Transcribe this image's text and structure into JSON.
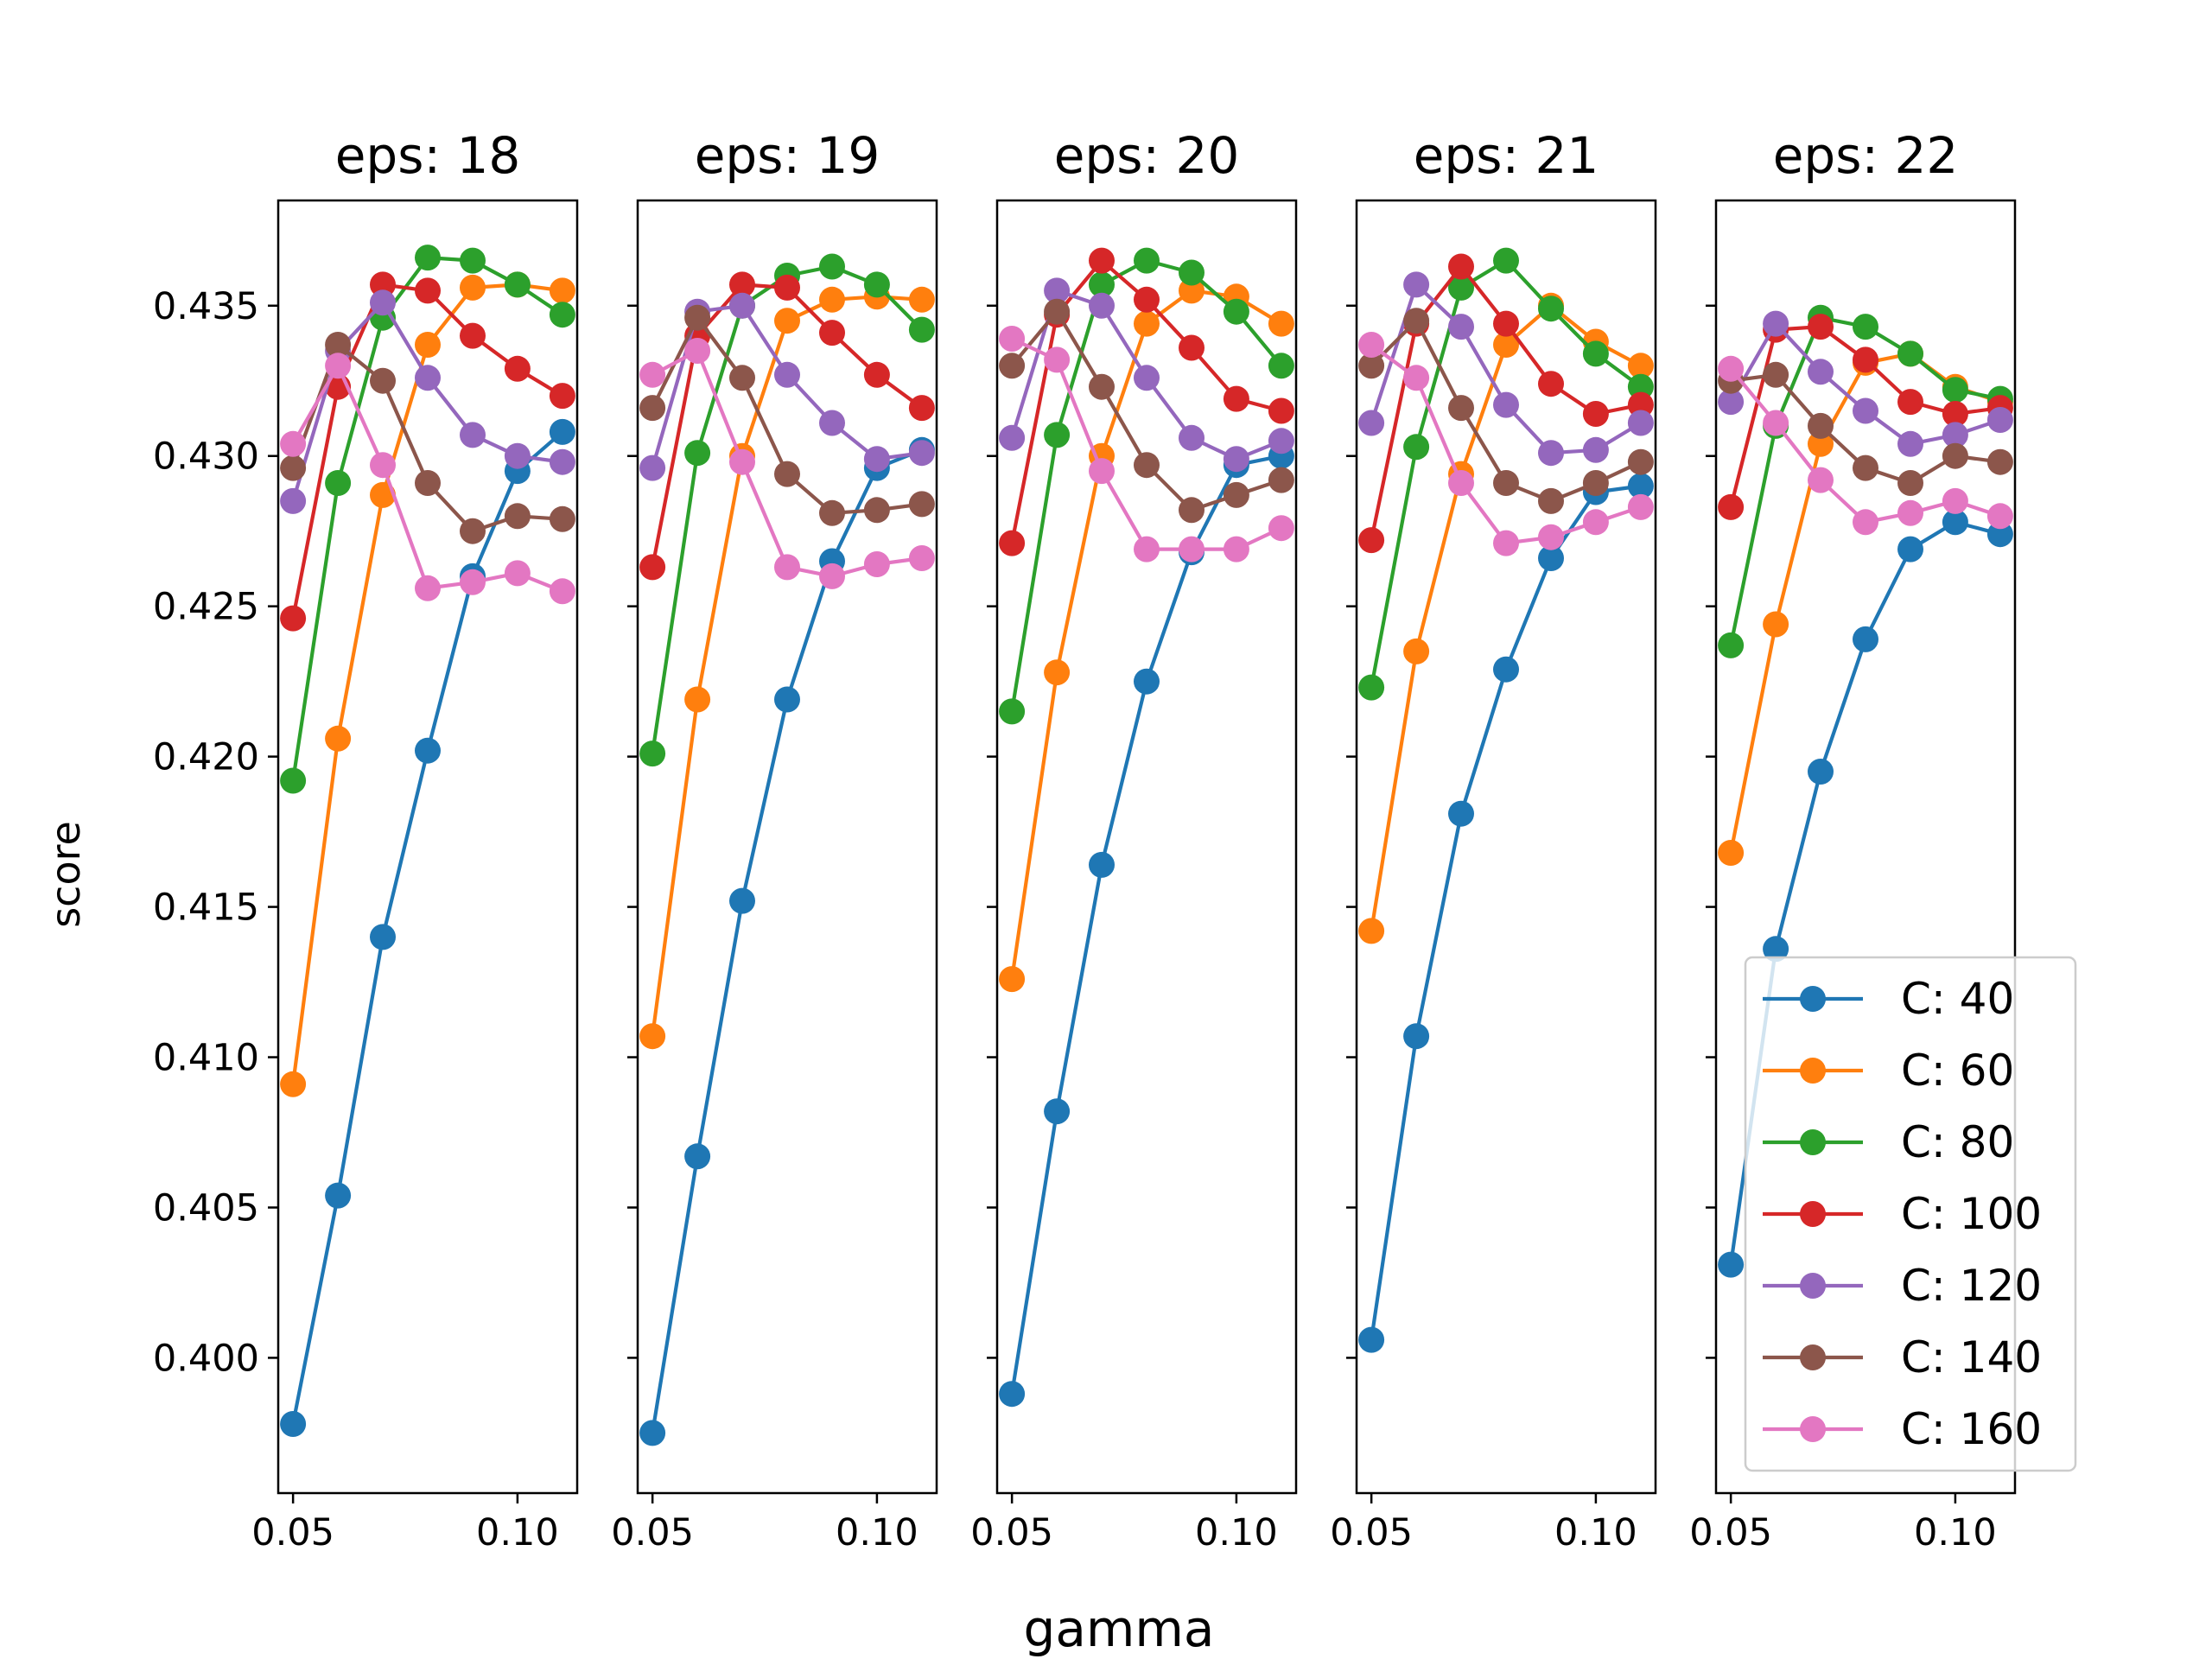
{
  "chart_data": {
    "type": "line",
    "layout": "small-multiples",
    "ylabel": "score",
    "xlabel": "gamma",
    "sharey": true,
    "ylim": [
      0.3955,
      0.4385
    ],
    "xlim": [
      0.0467,
      0.1133
    ],
    "yticks": [
      0.4,
      0.405,
      0.41,
      0.415,
      0.42,
      0.425,
      0.43,
      0.435
    ],
    "ytick_labels": [
      "0.400",
      "0.405",
      "0.410",
      "0.415",
      "0.420",
      "0.425",
      "0.430",
      "0.435"
    ],
    "xticks": [
      0.05,
      0.1
    ],
    "xtick_labels": [
      "0.05",
      "0.10"
    ],
    "x": [
      0.05,
      0.06,
      0.07,
      0.08,
      0.09,
      0.1,
      0.11
    ],
    "legend": {
      "placement": "lower-right",
      "panel_index": 4
    },
    "series_styles": [
      {
        "name": "C: 40",
        "color": "#1f77b4"
      },
      {
        "name": "C: 60",
        "color": "#ff7f0e"
      },
      {
        "name": "C: 80",
        "color": "#2ca02c"
      },
      {
        "name": "C: 100",
        "color": "#d62728"
      },
      {
        "name": "C: 120",
        "color": "#9467bd"
      },
      {
        "name": "C: 140",
        "color": "#8c564b"
      },
      {
        "name": "C: 160",
        "color": "#e377c2"
      }
    ],
    "panels": [
      {
        "title": "eps: 18",
        "series": [
          [
            0.3978,
            0.4054,
            0.414,
            0.4202,
            0.426,
            0.4295,
            0.4308
          ],
          [
            0.4091,
            0.4206,
            0.4287,
            0.4337,
            0.4356,
            0.4357,
            0.4355
          ],
          [
            0.4192,
            0.4291,
            0.4346,
            0.4366,
            0.4365,
            0.4357,
            0.4347
          ],
          [
            0.4246,
            0.4323,
            0.4357,
            0.4355,
            0.434,
            0.4329,
            0.432
          ],
          [
            0.4285,
            0.4335,
            0.4351,
            0.4326,
            0.4307,
            0.43,
            0.4298
          ],
          [
            0.4296,
            0.4337,
            0.4325,
            0.4291,
            0.4275,
            0.428,
            0.4279
          ],
          [
            0.4304,
            0.433,
            0.4297,
            0.4256,
            0.4258,
            0.4261,
            0.4255
          ]
        ]
      },
      {
        "title": "eps: 19",
        "series": [
          [
            0.3975,
            0.4067,
            0.4152,
            0.4219,
            0.4265,
            0.4296,
            0.4302
          ],
          [
            0.4107,
            0.4219,
            0.43,
            0.4345,
            0.4352,
            0.4353,
            0.4352
          ],
          [
            0.4201,
            0.4301,
            0.435,
            0.436,
            0.4363,
            0.4357,
            0.4342
          ],
          [
            0.4263,
            0.434,
            0.4357,
            0.4356,
            0.4341,
            0.4327,
            0.4316
          ],
          [
            0.4296,
            0.4348,
            0.435,
            0.4327,
            0.4311,
            0.4299,
            0.4301
          ],
          [
            0.4316,
            0.4346,
            0.4326,
            0.4294,
            0.4281,
            0.4282,
            0.4284
          ],
          [
            0.4327,
            0.4335,
            0.4298,
            0.4263,
            0.426,
            0.4264,
            0.4266
          ]
        ]
      },
      {
        "title": "eps: 20",
        "series": [
          [
            0.3988,
            0.4082,
            0.4164,
            0.4225,
            0.4268,
            0.4297,
            0.43
          ],
          [
            0.4126,
            0.4228,
            0.43,
            0.4344,
            0.4355,
            0.4353,
            0.4344
          ],
          [
            0.4215,
            0.4307,
            0.4357,
            0.4365,
            0.4361,
            0.4348,
            0.433
          ],
          [
            0.4271,
            0.4347,
            0.4365,
            0.4352,
            0.4336,
            0.4319,
            0.4315
          ],
          [
            0.4306,
            0.4355,
            0.435,
            0.4326,
            0.4306,
            0.4299,
            0.4305
          ],
          [
            0.433,
            0.4348,
            0.4323,
            0.4297,
            0.4282,
            0.4287,
            0.4292
          ],
          [
            0.4339,
            0.4332,
            0.4295,
            0.4269,
            0.4269,
            0.4269,
            0.4276
          ]
        ]
      },
      {
        "title": "eps: 21",
        "series": [
          [
            0.4006,
            0.4107,
            0.4181,
            0.4229,
            0.4266,
            0.4288,
            0.429
          ],
          [
            0.4142,
            0.4235,
            0.4294,
            0.4337,
            0.435,
            0.4338,
            0.433
          ],
          [
            0.4223,
            0.4303,
            0.4356,
            0.4365,
            0.4349,
            0.4334,
            0.4323
          ],
          [
            0.4272,
            0.4344,
            0.4363,
            0.4344,
            0.4324,
            0.4314,
            0.4317
          ],
          [
            0.4311,
            0.4357,
            0.4343,
            0.4317,
            0.4301,
            0.4302,
            0.4311
          ],
          [
            0.433,
            0.4345,
            0.4316,
            0.4291,
            0.4285,
            0.4291,
            0.4298
          ],
          [
            0.4337,
            0.4326,
            0.4291,
            0.4271,
            0.4273,
            0.4278,
            0.4283
          ]
        ]
      },
      {
        "title": "eps: 22",
        "series": [
          [
            0.4031,
            0.4136,
            0.4195,
            0.4239,
            0.4269,
            0.4278,
            0.4274
          ],
          [
            0.4168,
            0.4244,
            0.4304,
            0.4331,
            0.4334,
            0.4323,
            0.4318
          ],
          [
            0.4237,
            0.431,
            0.4346,
            0.4343,
            0.4334,
            0.4322,
            0.4319
          ],
          [
            0.4283,
            0.4342,
            0.4343,
            0.4332,
            0.4318,
            0.4314,
            0.4316
          ],
          [
            0.4318,
            0.4344,
            0.4328,
            0.4315,
            0.4304,
            0.4307,
            0.4312
          ],
          [
            0.4325,
            0.4327,
            0.431,
            0.4296,
            0.4291,
            0.43,
            0.4298
          ],
          [
            0.4329,
            0.4311,
            0.4292,
            0.4278,
            0.4281,
            0.4285,
            0.428
          ]
        ]
      }
    ]
  }
}
